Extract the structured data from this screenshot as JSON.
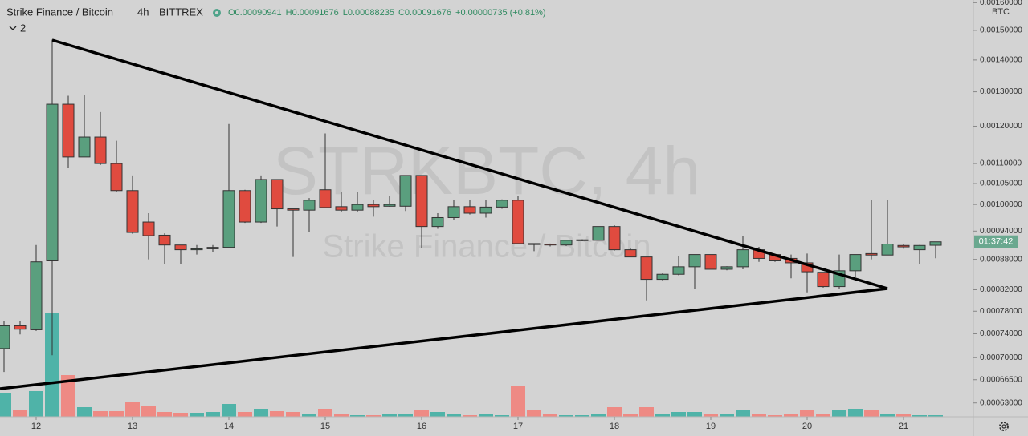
{
  "chart_data": {
    "type": "candlestick",
    "title": "Strike Finance / Bitcoin",
    "interval": "4h",
    "exchange": "BITTREX",
    "ohlc_legend": [
      "O0.00090941",
      "H0.00091676",
      "L0.00088235",
      "C0.00091676"
    ],
    "change": "+0.00000735 (+0.81%)",
    "indicator_count": "2",
    "watermark": "STRKBTC, 4h",
    "watermark_subtitle": "Strike Finance / Bitcoin",
    "y_axis_unit": "BTC",
    "countdown": "01:37:42",
    "log_scale": true,
    "up_color": "#5a9f7e",
    "down_color": "#e04b3f",
    "volume_up_color": "#4fb3a8",
    "volume_down_color": "#ee8a84",
    "categories": [
      null,
      null,
      "12",
      null,
      null,
      null,
      null,
      null,
      "13",
      null,
      null,
      null,
      null,
      null,
      "14",
      null,
      null,
      null,
      null,
      null,
      "15",
      null,
      null,
      null,
      null,
      null,
      "16",
      null,
      null,
      null,
      null,
      null,
      "17",
      null,
      null,
      null,
      null,
      null,
      "18",
      null,
      null,
      null,
      null,
      null,
      "19",
      null,
      null,
      null,
      null,
      null,
      "20",
      null,
      null,
      null,
      null,
      null,
      "21",
      null,
      null
    ],
    "open": [
      0.000715,
      0.000754,
      0.000747,
      0.000877,
      0.001263,
      0.001117,
      0.00117,
      0.0011,
      0.001033,
      0.00096,
      0.000931,
      0.00091,
      0.0009,
      0.000902,
      0.000905,
      0.001033,
      0.00096,
      0.00106,
      0.00099,
      0.000987,
      0.001035,
      0.000995,
      0.000987,
      0.001,
      0.000996,
      0.000996,
      0.00107,
      0.00095,
      0.00097,
      0.000995,
      0.00098,
      0.000994,
      0.00101,
      0.000913,
      0.000912,
      0.00091,
      0.00092,
      0.00092,
      0.00095,
      0.0009,
      0.000885,
      0.00084,
      0.00085,
      0.000865,
      0.00089,
      0.00086,
      0.000865,
      0.0009,
      0.00089,
      0.000882,
      0.000873,
      0.000854,
      0.000826,
      0.000857,
      0.000892,
      0.000889,
      0.000909,
      0.0009,
      0.00090941
    ],
    "high": [
      0.000762,
      0.000763,
      0.00091,
      0.001468,
      0.001288,
      0.00129,
      0.00124,
      0.00116,
      0.00107,
      0.00098,
      0.000935,
      0.00091,
      0.00091,
      0.00091,
      0.001206,
      0.001035,
      0.00107,
      0.00106,
      0.00099,
      0.001015,
      0.00118,
      0.00103,
      0.00103,
      0.00101,
      0.00102,
      0.00107,
      0.00107,
      0.00098,
      0.00101,
      0.00101,
      0.00101,
      0.001012,
      0.00102,
      0.000913,
      0.000913,
      0.00092,
      0.000922,
      0.00095,
      0.000953,
      0.000903,
      0.000885,
      0.000852,
      0.000886,
      0.00089,
      0.00089,
      0.000866,
      0.00093,
      0.000906,
      0.00089,
      0.00089,
      0.000892,
      0.000854,
      0.00089,
      0.00089,
      0.00101,
      0.00101,
      0.000912,
      0.00091,
      0.00091676
    ],
    "low": [
      0.000677,
      0.000739,
      0.000745,
      0.000704,
      0.00109,
      0.001117,
      0.001096,
      0.00103,
      0.000934,
      0.00088,
      0.000871,
      0.00087,
      0.00089,
      0.000895,
      0.000903,
      0.000958,
      0.000958,
      0.00095,
      0.000885,
      0.000937,
      0.000991,
      0.000983,
      0.000982,
      0.000972,
      0.000995,
      0.000985,
      0.000903,
      0.000945,
      0.000965,
      0.000977,
      0.00097,
      0.00099,
      0.000913,
      0.000897,
      0.000907,
      0.000908,
      0.000918,
      0.00092,
      0.000898,
      0.000885,
      0.0008,
      0.000838,
      0.000848,
      0.000822,
      0.00086,
      0.000858,
      0.00086,
      0.000875,
      0.000875,
      0.000842,
      0.000815,
      0.000824,
      0.000822,
      0.000844,
      0.00088,
      0.000889,
      0.000902,
      0.00087,
      0.00088235
    ],
    "close": [
      0.000754,
      0.000748,
      0.000875,
      0.001263,
      0.001117,
      0.00117,
      0.0011,
      0.001033,
      0.000937,
      0.00093,
      0.00091,
      0.0009,
      0.000902,
      0.000905,
      0.001033,
      0.00096,
      0.00106,
      0.00099,
      0.000987,
      0.00101,
      0.000993,
      0.000987,
      0.001,
      0.000995,
      0.001,
      0.00107,
      0.00095,
      0.00097,
      0.000995,
      0.00098,
      0.000994,
      0.00101,
      0.000913,
      0.000911,
      0.00091,
      0.00092,
      0.000921,
      0.00095,
      0.0009,
      0.000885,
      0.00084,
      0.00085,
      0.000865,
      0.00089,
      0.00086,
      0.000865,
      0.0009,
      0.000882,
      0.000877,
      0.000873,
      0.000855,
      0.000826,
      0.000857,
      0.00089,
      0.000889,
      0.000912,
      0.000906,
      0.000909,
      0.00091676
    ],
    "volume": [
      30,
      8,
      32,
      130,
      52,
      12,
      7,
      7,
      19,
      14,
      6,
      5,
      5,
      6,
      16,
      6,
      10,
      7,
      6,
      4,
      10,
      3,
      2,
      2,
      4,
      3,
      8,
      6,
      4,
      2,
      4,
      2,
      38,
      8,
      4,
      2,
      2,
      4,
      12,
      4,
      12,
      3,
      6,
      6,
      4,
      3,
      8,
      4,
      2,
      3,
      8,
      3,
      8,
      10,
      8,
      4,
      3,
      2,
      2
    ],
    "ylim": [
      0.00061,
      0.00161
    ],
    "yticks": [
      {
        "value": 0.0016,
        "label": "0.00160000"
      },
      {
        "value": 0.0015,
        "label": "0.00150000"
      },
      {
        "value": 0.0014,
        "label": "0.00140000"
      },
      {
        "value": 0.0013,
        "label": "0.00130000"
      },
      {
        "value": 0.0012,
        "label": "0.00120000"
      },
      {
        "value": 0.0011,
        "label": "0.00110000"
      },
      {
        "value": 0.00105,
        "label": "0.00105000"
      },
      {
        "value": 0.001,
        "label": "0.00100000"
      },
      {
        "value": 0.00094,
        "label": "0.00094000"
      },
      {
        "value": 0.00088,
        "label": "0.00088000"
      },
      {
        "value": 0.00082,
        "label": "0.00082000"
      },
      {
        "value": 0.00078,
        "label": "0.00078000"
      },
      {
        "value": 0.00074,
        "label": "0.00074000"
      },
      {
        "value": 0.0007,
        "label": "0.00070000"
      },
      {
        "value": 0.000665,
        "label": "0.00066500"
      },
      {
        "value": 0.00063,
        "label": "0.00063000"
      }
    ]
  }
}
